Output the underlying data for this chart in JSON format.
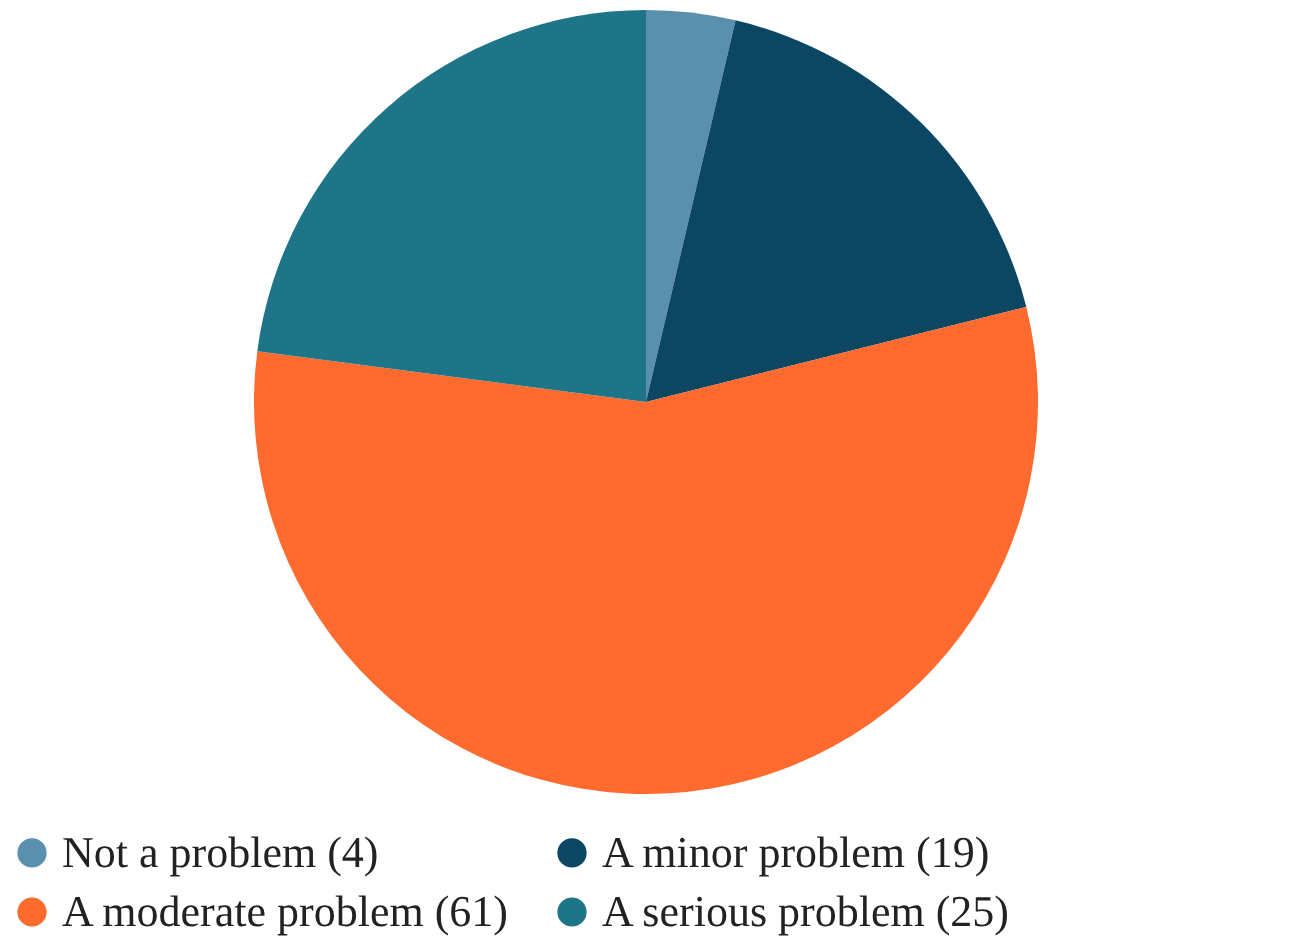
{
  "chart_data": {
    "type": "pie",
    "categories": [
      "Not a problem (4)",
      "A minor problem (19)",
      "A moderate problem (61)",
      "A serious problem (25)"
    ],
    "values": [
      4,
      19,
      61,
      25
    ],
    "colors": [
      "#5a90ae",
      "#0b4663",
      "#ff6b2f",
      "#1d7587"
    ],
    "legend": "bottom"
  }
}
